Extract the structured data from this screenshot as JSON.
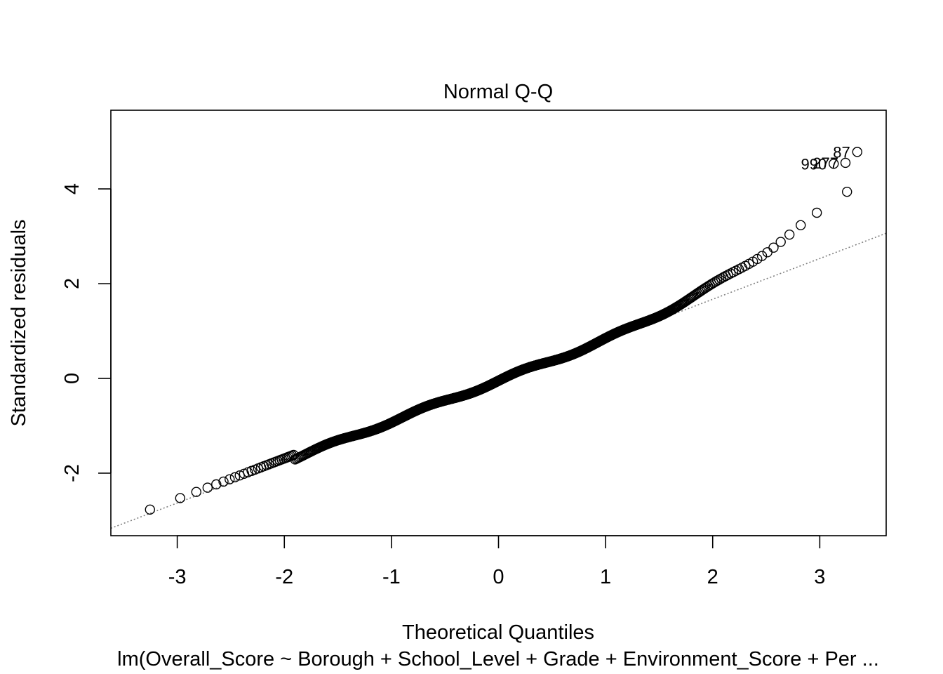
{
  "chart_data": {
    "type": "scatter",
    "title": "Normal Q-Q",
    "xlabel": "Theoretical Quantiles",
    "ylabel": "Standardized residuals",
    "subtitle": "lm(Overall_Score ~ Borough + School_Level + Grade + Environment_Score + Per ...",
    "xlim": [
      -3.62,
      3.62
    ],
    "ylim": [
      -3.32,
      5.66
    ],
    "xticks": [
      -3,
      -2,
      -1,
      0,
      1,
      2,
      3
    ],
    "xtick_labels": [
      "-3",
      "-2",
      "-1",
      "0",
      "1",
      "2",
      "3"
    ],
    "yticks": [
      -2,
      0,
      2,
      4
    ],
    "ytick_labels": [
      "-2",
      "0",
      "2",
      "4"
    ],
    "reference_line": {
      "intercept": -0.05,
      "slope": 0.86,
      "style": "dotted",
      "color": "#808080"
    },
    "labeled_points": [
      {
        "label": "87",
        "x": 3.35,
        "y": 4.78
      },
      {
        "label": "990",
        "x": 3.13,
        "y": 4.53
      },
      {
        "label": "277",
        "x": 3.24,
        "y": 4.55
      }
    ],
    "point_color": "#000000",
    "grid": false
  }
}
